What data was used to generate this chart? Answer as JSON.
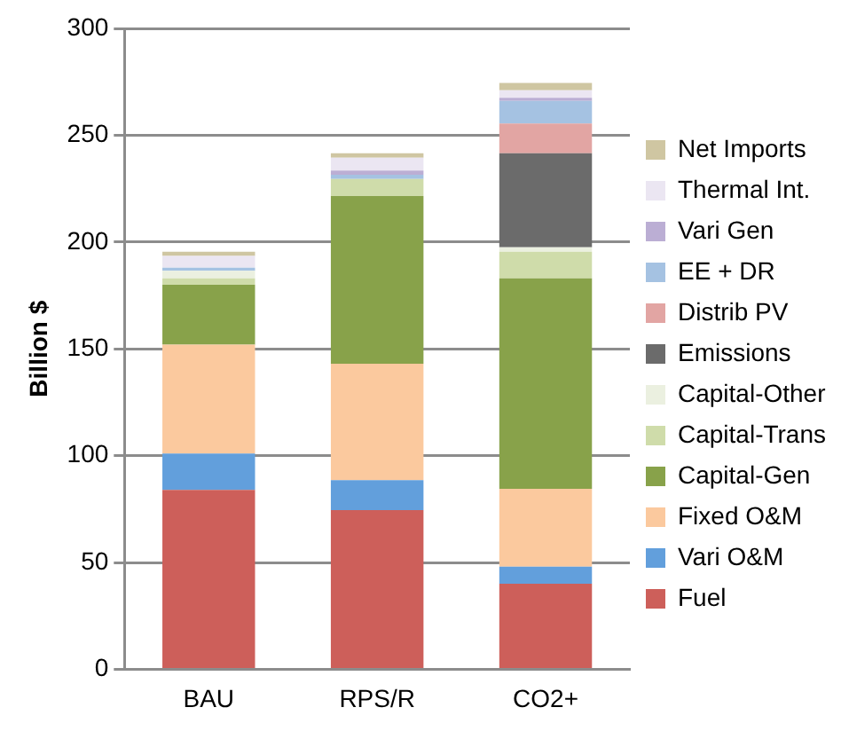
{
  "chart_data": {
    "type": "bar",
    "stacked": true,
    "ylabel": "Billion $",
    "categories": [
      "BAU",
      "RPS/R",
      "CO2+"
    ],
    "series": [
      {
        "name": "Fuel",
        "color": "#cd5f5a",
        "values": [
          84,
          74.5,
          40
        ]
      },
      {
        "name": "Vari O&M",
        "color": "#629fdc",
        "values": [
          17,
          14,
          8
        ]
      },
      {
        "name": "Fixed O&M",
        "color": "#fbc99e",
        "values": [
          51,
          54.5,
          36.5
        ]
      },
      {
        "name": "Capital-Gen",
        "color": "#88a24a",
        "values": [
          28,
          78.5,
          98.5
        ]
      },
      {
        "name": "Capital-Trans",
        "color": "#cfdcaa",
        "values": [
          3,
          8,
          12.5
        ]
      },
      {
        "name": "Capital-Other",
        "color": "#ebf0e0",
        "values": [
          3.5,
          null,
          2
        ]
      },
      {
        "name": "Emissions",
        "color": "#6b6b6b",
        "values": [
          0,
          0,
          44
        ]
      },
      {
        "name": "Distrib PV",
        "color": "#e2a5a3",
        "values": [
          0,
          0,
          14
        ]
      },
      {
        "name": "EE + DR",
        "color": "#a5c2e2",
        "values": [
          1.5,
          2,
          10.5
        ]
      },
      {
        "name": "Vari Gen",
        "color": "#bbaed4",
        "values": [
          null,
          2,
          1.5
        ]
      },
      {
        "name": "Thermal Int.",
        "color": "#ebe6f2",
        "values": [
          5.5,
          6,
          3.5
        ]
      },
      {
        "name": "Net Imports",
        "color": "#cfc6a2",
        "values": [
          2,
          2,
          3.5
        ]
      }
    ],
    "ylim": [
      0,
      300
    ],
    "yticks": [
      0,
      50,
      100,
      150,
      200,
      250,
      300
    ],
    "grid": "y",
    "legend": "right"
  }
}
